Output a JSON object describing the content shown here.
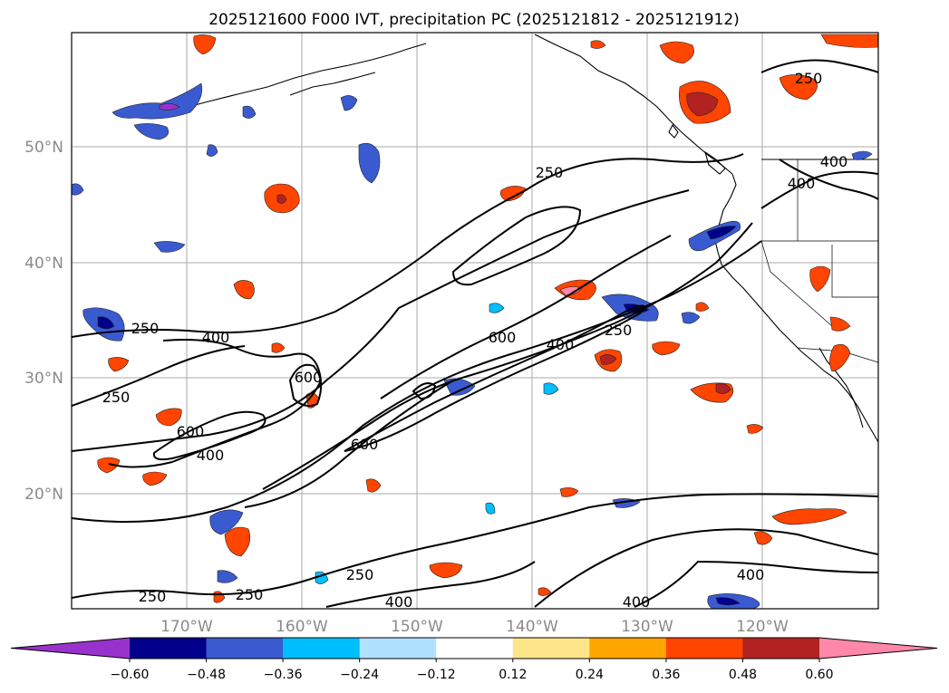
{
  "chart_data": {
    "type": "map-contour",
    "title": "2025121600 F000 IVT, precipitation PC (2025121812 - 2025121912)",
    "lat_ticks": [
      "50°N",
      "40°N",
      "30°N",
      "20°N"
    ],
    "lon_ticks": [
      "170°W",
      "160°W",
      "150°W",
      "140°W",
      "130°W",
      "120°W"
    ],
    "ivt_contour_levels": [
      250,
      400,
      600
    ],
    "contour_labels": [
      "250",
      "250",
      "250",
      "250",
      "250",
      "250",
      "250",
      "250",
      "400",
      "400",
      "400",
      "400",
      "400",
      "400",
      "400",
      "400",
      "600",
      "600",
      "600",
      "600"
    ],
    "colorbar": {
      "ticks": [
        "−0.60",
        "−0.48",
        "−0.36",
        "−0.24",
        "−0.12",
        "0.12",
        "0.24",
        "0.36",
        "0.48",
        "0.60"
      ],
      "colors": [
        "#9932CC",
        "#00008B",
        "#3A5BD0",
        "#00BFFF",
        "#B0E2FF",
        "#FFFFFF",
        "#FFE58A",
        "#FFA500",
        "#FF4500",
        "#B22222",
        "#FF88AA"
      ],
      "extend": "both"
    }
  }
}
